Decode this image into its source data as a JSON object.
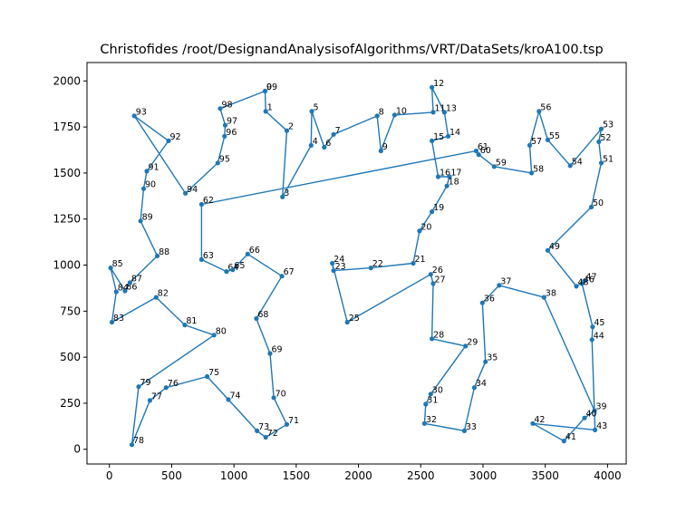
{
  "chart_data": {
    "type": "line",
    "title": "Christofides /root/DesignandAnalysisofAlgorithms/VRT/DataSets/kroA100.tsp",
    "xlabel": "",
    "ylabel": "",
    "xlim": [
      -180,
      4150
    ],
    "ylim": [
      -80,
      2100
    ],
    "xticks": [
      0,
      500,
      1000,
      1500,
      2000,
      2500,
      3000,
      3500,
      4000
    ],
    "yticks": [
      0,
      250,
      500,
      750,
      1000,
      1250,
      1500,
      1750,
      2000
    ],
    "line_color": "#1f77b4",
    "points": [
      {
        "id": "0",
        "x": 1250,
        "y": 1945
      },
      {
        "id": "1",
        "x": 1255,
        "y": 1835
      },
      {
        "id": "2",
        "x": 1425,
        "y": 1730
      },
      {
        "id": "3",
        "x": 1390,
        "y": 1370
      },
      {
        "id": "4",
        "x": 1620,
        "y": 1650
      },
      {
        "id": "5",
        "x": 1625,
        "y": 1835
      },
      {
        "id": "6",
        "x": 1725,
        "y": 1640
      },
      {
        "id": "7",
        "x": 1800,
        "y": 1710
      },
      {
        "id": "8",
        "x": 2150,
        "y": 1810
      },
      {
        "id": "9",
        "x": 2180,
        "y": 1620
      },
      {
        "id": "10",
        "x": 2290,
        "y": 1815
      },
      {
        "id": "11",
        "x": 2600,
        "y": 1830
      },
      {
        "id": "12",
        "x": 2590,
        "y": 1965
      },
      {
        "id": "13",
        "x": 2690,
        "y": 1830
      },
      {
        "id": "14",
        "x": 2720,
        "y": 1700
      },
      {
        "id": "15",
        "x": 2590,
        "y": 1675
      },
      {
        "id": "16",
        "x": 2640,
        "y": 1480
      },
      {
        "id": "17",
        "x": 2730,
        "y": 1480
      },
      {
        "id": "18",
        "x": 2710,
        "y": 1430
      },
      {
        "id": "19",
        "x": 2590,
        "y": 1290
      },
      {
        "id": "20",
        "x": 2490,
        "y": 1185
      },
      {
        "id": "21",
        "x": 2440,
        "y": 1010
      },
      {
        "id": "22",
        "x": 2100,
        "y": 985
      },
      {
        "id": "23",
        "x": 1800,
        "y": 970
      },
      {
        "id": "24",
        "x": 1790,
        "y": 1010
      },
      {
        "id": "25",
        "x": 1910,
        "y": 690
      },
      {
        "id": "26",
        "x": 2580,
        "y": 950
      },
      {
        "id": "27",
        "x": 2600,
        "y": 900
      },
      {
        "id": "28",
        "x": 2590,
        "y": 600
      },
      {
        "id": "29",
        "x": 2860,
        "y": 560
      },
      {
        "id": "30",
        "x": 2580,
        "y": 300
      },
      {
        "id": "31",
        "x": 2540,
        "y": 245
      },
      {
        "id": "32",
        "x": 2530,
        "y": 140
      },
      {
        "id": "33",
        "x": 2850,
        "y": 100
      },
      {
        "id": "34",
        "x": 2930,
        "y": 335
      },
      {
        "id": "35",
        "x": 3020,
        "y": 475
      },
      {
        "id": "36",
        "x": 2995,
        "y": 795
      },
      {
        "id": "37",
        "x": 3130,
        "y": 890
      },
      {
        "id": "38",
        "x": 3490,
        "y": 825
      },
      {
        "id": "39",
        "x": 3895,
        "y": 210
      },
      {
        "id": "40",
        "x": 3815,
        "y": 170
      },
      {
        "id": "41",
        "x": 3650,
        "y": 45
      },
      {
        "id": "42",
        "x": 3400,
        "y": 140
      },
      {
        "id": "43",
        "x": 3900,
        "y": 105
      },
      {
        "id": "44",
        "x": 3875,
        "y": 595
      },
      {
        "id": "45",
        "x": 3880,
        "y": 665
      },
      {
        "id": "46",
        "x": 3795,
        "y": 900
      },
      {
        "id": "47",
        "x": 3815,
        "y": 915
      },
      {
        "id": "48",
        "x": 3750,
        "y": 885
      },
      {
        "id": "49",
        "x": 3520,
        "y": 1080
      },
      {
        "id": "50",
        "x": 3870,
        "y": 1315
      },
      {
        "id": "51",
        "x": 3950,
        "y": 1555
      },
      {
        "id": "52",
        "x": 3930,
        "y": 1670
      },
      {
        "id": "53",
        "x": 3950,
        "y": 1740
      },
      {
        "id": "54",
        "x": 3700,
        "y": 1540
      },
      {
        "id": "55",
        "x": 3520,
        "y": 1680
      },
      {
        "id": "56",
        "x": 3450,
        "y": 1835
      },
      {
        "id": "57",
        "x": 3375,
        "y": 1650
      },
      {
        "id": "58",
        "x": 3390,
        "y": 1500
      },
      {
        "id": "59",
        "x": 3090,
        "y": 1535
      },
      {
        "id": "60",
        "x": 2965,
        "y": 1600
      },
      {
        "id": "61",
        "x": 2945,
        "y": 1620
      },
      {
        "id": "62",
        "x": 740,
        "y": 1330
      },
      {
        "id": "63",
        "x": 740,
        "y": 1030
      },
      {
        "id": "64",
        "x": 940,
        "y": 965
      },
      {
        "id": "65",
        "x": 990,
        "y": 975
      },
      {
        "id": "66",
        "x": 1110,
        "y": 1060
      },
      {
        "id": "67",
        "x": 1385,
        "y": 940
      },
      {
        "id": "68",
        "x": 1180,
        "y": 710
      },
      {
        "id": "69",
        "x": 1290,
        "y": 520
      },
      {
        "id": "70",
        "x": 1320,
        "y": 280
      },
      {
        "id": "71",
        "x": 1425,
        "y": 135
      },
      {
        "id": "72",
        "x": 1255,
        "y": 65
      },
      {
        "id": "73",
        "x": 1185,
        "y": 100
      },
      {
        "id": "74",
        "x": 955,
        "y": 270
      },
      {
        "id": "75",
        "x": 785,
        "y": 395
      },
      {
        "id": "76",
        "x": 455,
        "y": 335
      },
      {
        "id": "77",
        "x": 325,
        "y": 265
      },
      {
        "id": "78",
        "x": 180,
        "y": 25
      },
      {
        "id": "79",
        "x": 235,
        "y": 340
      },
      {
        "id": "80",
        "x": 840,
        "y": 620
      },
      {
        "id": "81",
        "x": 605,
        "y": 675
      },
      {
        "id": "82",
        "x": 375,
        "y": 825
      },
      {
        "id": "83",
        "x": 20,
        "y": 690
      },
      {
        "id": "84",
        "x": 55,
        "y": 855
      },
      {
        "id": "85",
        "x": 10,
        "y": 985
      },
      {
        "id": "86",
        "x": 125,
        "y": 860
      },
      {
        "id": "87",
        "x": 165,
        "y": 905
      },
      {
        "id": "88",
        "x": 385,
        "y": 1050
      },
      {
        "id": "89",
        "x": 250,
        "y": 1240
      },
      {
        "id": "90",
        "x": 275,
        "y": 1415
      },
      {
        "id": "91",
        "x": 300,
        "y": 1510
      },
      {
        "id": "92",
        "x": 475,
        "y": 1675
      },
      {
        "id": "93",
        "x": 200,
        "y": 1810
      },
      {
        "id": "94",
        "x": 610,
        "y": 1390
      },
      {
        "id": "95",
        "x": 870,
        "y": 1555
      },
      {
        "id": "96",
        "x": 925,
        "y": 1700
      },
      {
        "id": "97",
        "x": 930,
        "y": 1760
      },
      {
        "id": "98",
        "x": 890,
        "y": 1850
      },
      {
        "id": "99",
        "x": 1250,
        "y": 1945
      }
    ],
    "tour": [
      "0",
      "1",
      "2",
      "3",
      "4",
      "5",
      "6",
      "7",
      "8",
      "9",
      "10",
      "11",
      "12",
      "13",
      "14",
      "15",
      "16",
      "17",
      "18",
      "19",
      "20",
      "21",
      "22",
      "23",
      "24",
      "25",
      "26",
      "27",
      "28",
      "29",
      "30",
      "31",
      "32",
      "33",
      "34",
      "35",
      "36",
      "37",
      "38",
      "39",
      "40",
      "41",
      "42",
      "43",
      "44",
      "45",
      "46",
      "47",
      "48",
      "49",
      "50",
      "51",
      "52",
      "53",
      "54",
      "55",
      "56",
      "57",
      "58",
      "59",
      "60",
      "61",
      "62",
      "63",
      "64",
      "65",
      "66",
      "67",
      "68",
      "69",
      "70",
      "71",
      "72",
      "73",
      "74",
      "75",
      "76",
      "77",
      "78",
      "79",
      "80",
      "81",
      "82",
      "83",
      "84",
      "85",
      "86",
      "87",
      "88",
      "89",
      "90",
      "91",
      "92",
      "93",
      "94",
      "95",
      "96",
      "97",
      "98",
      "99",
      "0"
    ]
  }
}
